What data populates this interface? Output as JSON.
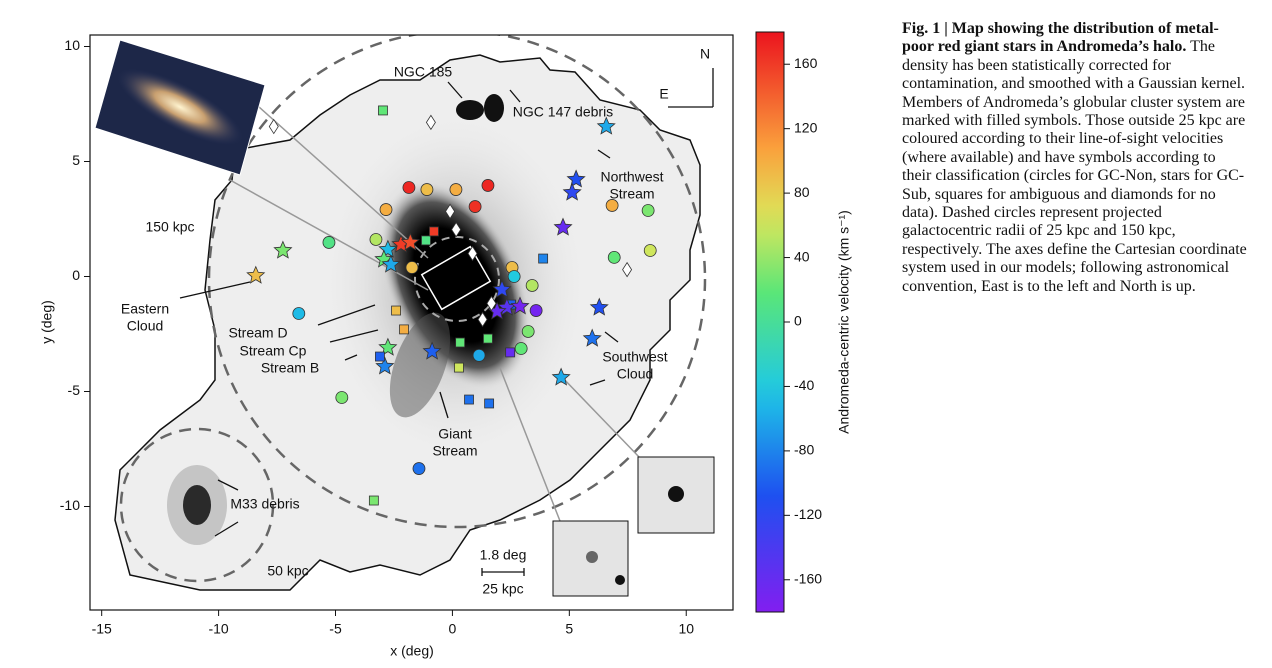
{
  "chart_data": {
    "type": "scatter",
    "xlabel": "x (deg)",
    "ylabel": "y (deg)",
    "xlim": [
      -15.5,
      12
    ],
    "ylim": [
      -14.5,
      10.5
    ],
    "xticks": [
      -15,
      -10,
      -5,
      0,
      5,
      10
    ],
    "yticks": [
      -10,
      -5,
      0,
      5,
      10
    ],
    "colorbar": {
      "label": "Andromeda-centric velocity (km s⁻¹)",
      "clim": [
        -180,
        180
      ],
      "ticks": [
        160,
        120,
        80,
        40,
        0,
        -40,
        -80,
        -120,
        -160
      ]
    },
    "annotations": [
      [
        "NGC 185"
      ],
      [
        "NGC 147 debris"
      ],
      [
        "Northwest",
        "Stream"
      ],
      [
        "150 kpc"
      ],
      [
        "Eastern",
        "Cloud"
      ],
      [
        "Stream D"
      ],
      [
        "Stream Cp"
      ],
      [
        "Stream B"
      ],
      [
        "Southwest",
        "Cloud"
      ],
      [
        "Giant",
        "Stream"
      ],
      [
        "M33 debris"
      ],
      [
        "50 kpc"
      ],
      [
        "1.8 deg"
      ],
      [
        "25 kpc"
      ],
      [
        "N"
      ],
      [
        "E"
      ]
    ],
    "points": {
      "x": [
        -2.97,
        6.58,
        -1.86,
        -1.09,
        0.15,
        1.52,
        0.97,
        -2.84,
        6.83,
        8.37,
        5.29,
        5.12,
        4.73,
        -5.28,
        -7.25,
        -3.27,
        -2.2,
        -1.8,
        -2.76,
        -2.93,
        -2.63,
        -1.73,
        2.55,
        2.64,
        3.41,
        6.92,
        8.46,
        -8.41,
        -6.57,
        -2.41,
        -2.07,
        2.51,
        2.12,
        2.33,
        1.91,
        2.89,
        3.58,
        3.24,
        2.94,
        1.14,
        2.47,
        1.52,
        0.33,
        6.28,
        5.98,
        -0.87,
        -2.76,
        -2.89,
        -3.1,
        0.28,
        4.65,
        -4.73,
        0.71,
        1.57,
        -1.43,
        -3.36,
        3.88,
        -1.13,
        -0.79,
        -7.64,
        -0.92,
        7.47,
        -0.1,
        0.16,
        0.86,
        1.29,
        1.67
      ],
      "y": [
        7.22,
        6.52,
        3.87,
        3.78,
        3.78,
        3.96,
        3.04,
        2.91,
        3.09,
        2.87,
        4.22,
        3.65,
        2.13,
        1.48,
        1.13,
        1.61,
        1.39,
        1.48,
        1.17,
        0.74,
        0.52,
        0.39,
        0.39,
        0.0,
        -0.39,
        0.83,
        1.13,
        0.04,
        -1.61,
        -1.48,
        -2.3,
        -1.22,
        -0.57,
        -1.35,
        -1.52,
        -1.3,
        -1.48,
        -2.39,
        -3.13,
        -3.43,
        -3.3,
        -2.7,
        -2.87,
        -1.35,
        -2.7,
        -3.26,
        -3.09,
        -3.91,
        -3.48,
        -3.96,
        -4.39,
        -5.26,
        -5.35,
        -5.52,
        -8.35,
        -9.74,
        0.78,
        1.57,
        1.96,
        6.52,
        6.7,
        0.3,
        2.83,
        2.04,
        1.0,
        -1.87,
        -1.17
      ],
      "velocity": [
        20,
        -60,
        170,
        90,
        100,
        170,
        165,
        100,
        100,
        30,
        -110,
        -120,
        -160,
        10,
        30,
        50,
        160,
        150,
        -50,
        20,
        -60,
        90,
        90,
        -40,
        50,
        20,
        60,
        90,
        -50,
        90,
        100,
        -100,
        -120,
        -150,
        -160,
        -170,
        -170,
        30,
        20,
        -60,
        -160,
        20,
        20,
        -110,
        -90,
        -100,
        20,
        -80,
        -100,
        60,
        -60,
        30,
        -90,
        -90,
        -90,
        30,
        -80,
        10,
        160,
        null,
        null,
        null,
        null,
        null,
        null,
        null,
        null
      ],
      "shape": [
        "square",
        "star",
        "circle",
        "circle",
        "circle",
        "circle",
        "circle",
        "circle",
        "circle",
        "circle",
        "star",
        "star",
        "star",
        "circle",
        "star",
        "circle",
        "star",
        "star",
        "star",
        "star",
        "star",
        "circle",
        "circle",
        "circle",
        "circle",
        "circle",
        "circle",
        "star",
        "circle",
        "square",
        "square",
        "square",
        "star",
        "star",
        "star",
        "star",
        "circle",
        "circle",
        "circle",
        "circle",
        "square",
        "square",
        "square",
        "star",
        "star",
        "star",
        "star",
        "star",
        "square",
        "square",
        "star",
        "circle",
        "square",
        "square",
        "circle",
        "square",
        "square",
        "square",
        "square",
        "diamond",
        "diamond",
        "diamond",
        "diamond",
        "diamond",
        "diamond",
        "diamond",
        "diamond"
      ]
    }
  },
  "caption": {
    "title": "Fig. 1 | Map showing the distribution of metal-poor red giant stars in Andromeda’s halo.",
    "body": "The density has been statistically corrected for contamination, and smoothed with a Gaussian kernel. Members of Andromeda’s globular cluster system are marked with filled symbols. Those outside 25 kpc are coloured according to their line-of-sight velocities (where available) and have symbols according to their classification (circles for GC-Non, stars for GC-Sub, squares for ambiguous and diamonds for no data). Dashed circles represent projected galactocentric radii of 25 kpc and 150 kpc, respectively. The axes define the Cartesian coordinate system used in our models; following astronomical convention, East is to the left and North is up."
  }
}
